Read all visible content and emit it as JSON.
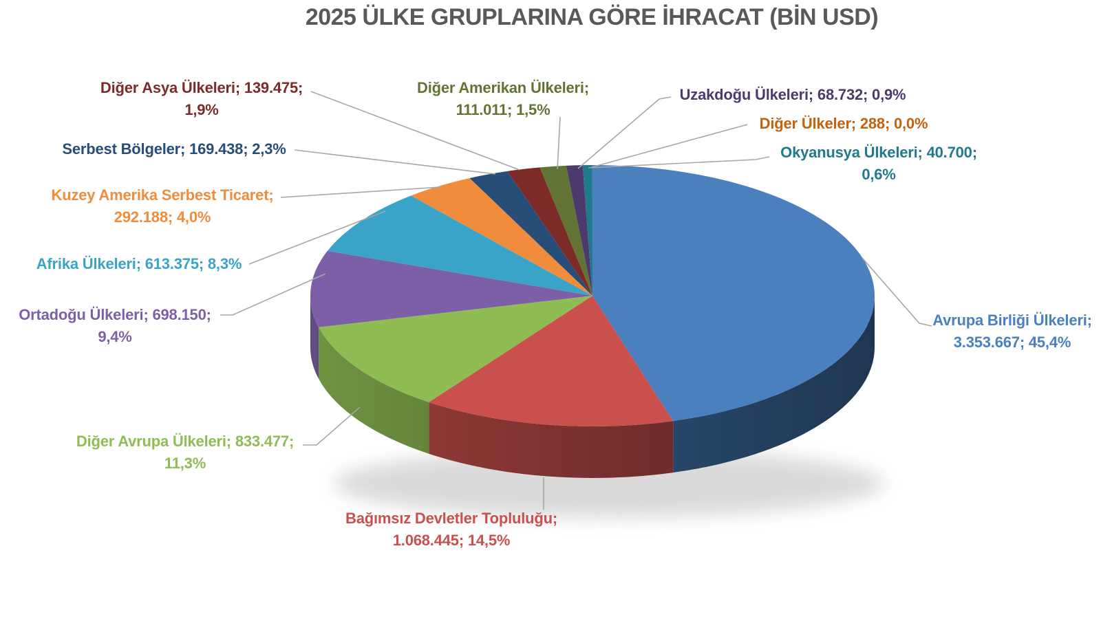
{
  "title": "2025 ÜLKE GRUPLARINA GÖRE İHRACAT (BİN USD)",
  "title_color": "#595959",
  "leader_line_color": "#A6A6A6",
  "chart_data": {
    "type": "pie",
    "style": "3d",
    "title": "2025 ÜLKE GRUPLARINA GÖRE İHRACAT (BİN USD)",
    "unit": "BİN USD",
    "legend_position": "none",
    "label_format": "label; value; percent (outside callouts with leader lines)",
    "start_angle_deg": 0,
    "direction": "clockwise",
    "slices": [
      {
        "id": "avrupa-birligi-ulkeleri",
        "label": "Avrupa Birliği Ülkeleri",
        "value": 3353667,
        "value_text": "3.353.667",
        "percent_text": "45,4%",
        "color": "#4A80BE",
        "callout_line1": "Avrupa Birliği Ülkeleri;",
        "callout_line2": "3.353.667; 45,4%"
      },
      {
        "id": "bagimsiz-devletler-toplulugu",
        "label": "Bağımsız Devletler Topluluğu",
        "value": 1068445,
        "value_text": "1.068.445",
        "percent_text": "14,5%",
        "color": "#C9504D",
        "callout_line1": "Bağımsız Devletler Topluluğu;",
        "callout_line2": "1.068.445; 14,5%"
      },
      {
        "id": "diger-avrupa-ulkeleri",
        "label": "Diğer Avrupa Ülkeleri",
        "value": 833477,
        "value_text": "833.477",
        "percent_text": "11,3%",
        "color": "#8FBC53",
        "callout_line1": "Diğer Avrupa Ülkeleri; 833.477;",
        "callout_line2": "11,3%"
      },
      {
        "id": "ortadogu-ulkeleri",
        "label": "Ortadoğu Ülkeleri",
        "value": 698150,
        "value_text": "698.150",
        "percent_text": "9,4%",
        "color": "#7D5FA8",
        "callout_line1": "Ortadoğu Ülkeleri; 698.150;",
        "callout_line2": "9,4%"
      },
      {
        "id": "afrika-ulkeleri",
        "label": "Afrika Ülkeleri",
        "value": 613375,
        "value_text": "613.375",
        "percent_text": "8,3%",
        "color": "#39A3C8",
        "callout_line1": "Afrika Ülkeleri; 613.375; 8,3%",
        "callout_line2": ""
      },
      {
        "id": "kuzey-amerika-serbest-ticaret",
        "label": "Kuzey Amerika Serbest Ticaret",
        "value": 292188,
        "value_text": "292.188",
        "percent_text": "4,0%",
        "color": "#F08C3C",
        "callout_line1": "Kuzey Amerika Serbest Ticaret;",
        "callout_line2": "292.188; 4,0%"
      },
      {
        "id": "serbest-bolgeler",
        "label": "Serbest Bölgeler",
        "value": 169438,
        "value_text": "169.438",
        "percent_text": "2,3%",
        "color": "#274E78",
        "callout_line1": "Serbest Bölgeler; 169.438; 2,3%",
        "callout_line2": ""
      },
      {
        "id": "diger-asya-ulkeleri",
        "label": "Diğer Asya Ülkeleri",
        "value": 139475,
        "value_text": "139.475",
        "percent_text": "1,9%",
        "color": "#7C2B28",
        "callout_line1": "Diğer Asya Ülkeleri; 139.475;",
        "callout_line2": "1,9%"
      },
      {
        "id": "diger-amerikan-ulkeleri",
        "label": "Diğer Amerikan Ülkeleri",
        "value": 111011,
        "value_text": "111.011",
        "percent_text": "1,5%",
        "color": "#617434",
        "callout_line1": "Diğer Amerikan Ülkeleri;",
        "callout_line2": "111.011; 1,5%"
      },
      {
        "id": "uzakdogu-ulkeleri",
        "label": "Uzakdoğu Ülkeleri",
        "value": 68732,
        "value_text": "68.732",
        "percent_text": "0,9%",
        "color": "#4B3A6B",
        "callout_line1": "Uzakdoğu Ülkeleri; 68.732; 0,9%",
        "callout_line2": ""
      },
      {
        "id": "okyanusya-ulkeleri",
        "label": "Okyanusya Ülkeleri",
        "value": 40700,
        "value_text": "40.700",
        "percent_text": "0,6%",
        "color": "#20798C",
        "callout_line1": "Okyanusya Ülkeleri; 40.700;",
        "callout_line2": "0,6%"
      },
      {
        "id": "diger-ulkeler",
        "label": "Diğer Ülkeler",
        "value": 288,
        "value_text": "288",
        "percent_text": "0,0%",
        "color": "#C2620F",
        "callout_line1": "Diğer Ülkeler; 288; 0,0%",
        "callout_line2": ""
      }
    ]
  }
}
